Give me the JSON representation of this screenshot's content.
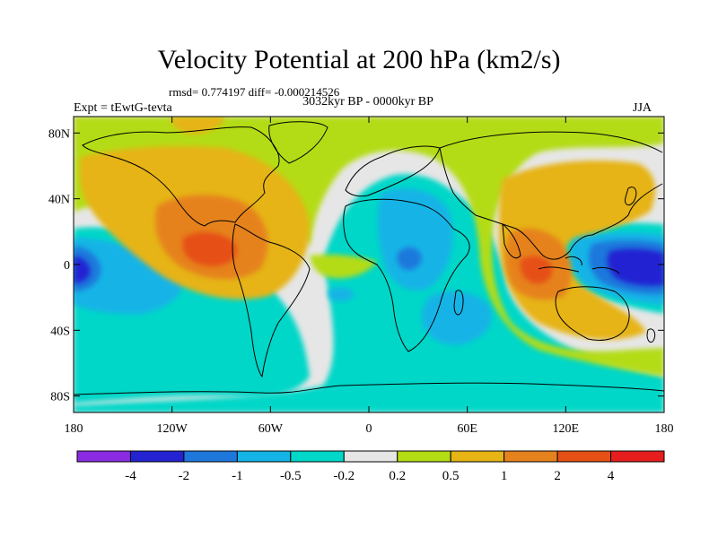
{
  "title": "Velocity Potential at 200 hPa (km2/s)",
  "stats": "rmsd= 0.774197 diff= -0.000214526",
  "period": "3032kyr BP - 0000kyr BP",
  "experiment": "Expt = tEwtG-tevta",
  "season": "JJA",
  "y_ticks": [
    "80N",
    "40N",
    "0",
    "40S",
    "80S"
  ],
  "x_ticks": [
    "180",
    "120W",
    "60W",
    "0",
    "60E",
    "120E",
    "180"
  ],
  "colorbar": {
    "labels": [
      "-4",
      "-2",
      "-1",
      "-0.5",
      "-0.2",
      "0.2",
      "0.5",
      "1",
      "2",
      "4"
    ],
    "colors": [
      "#8a2be2",
      "#2323d2",
      "#1e78dc",
      "#14b4e6",
      "#00d7c8",
      "#e6e6e6",
      "#b4dc14",
      "#e6b414",
      "#e6821e",
      "#e65014",
      "#e61e1e"
    ]
  },
  "palette": {
    "background": "#e6e6e6",
    "coast": "#000000"
  }
}
